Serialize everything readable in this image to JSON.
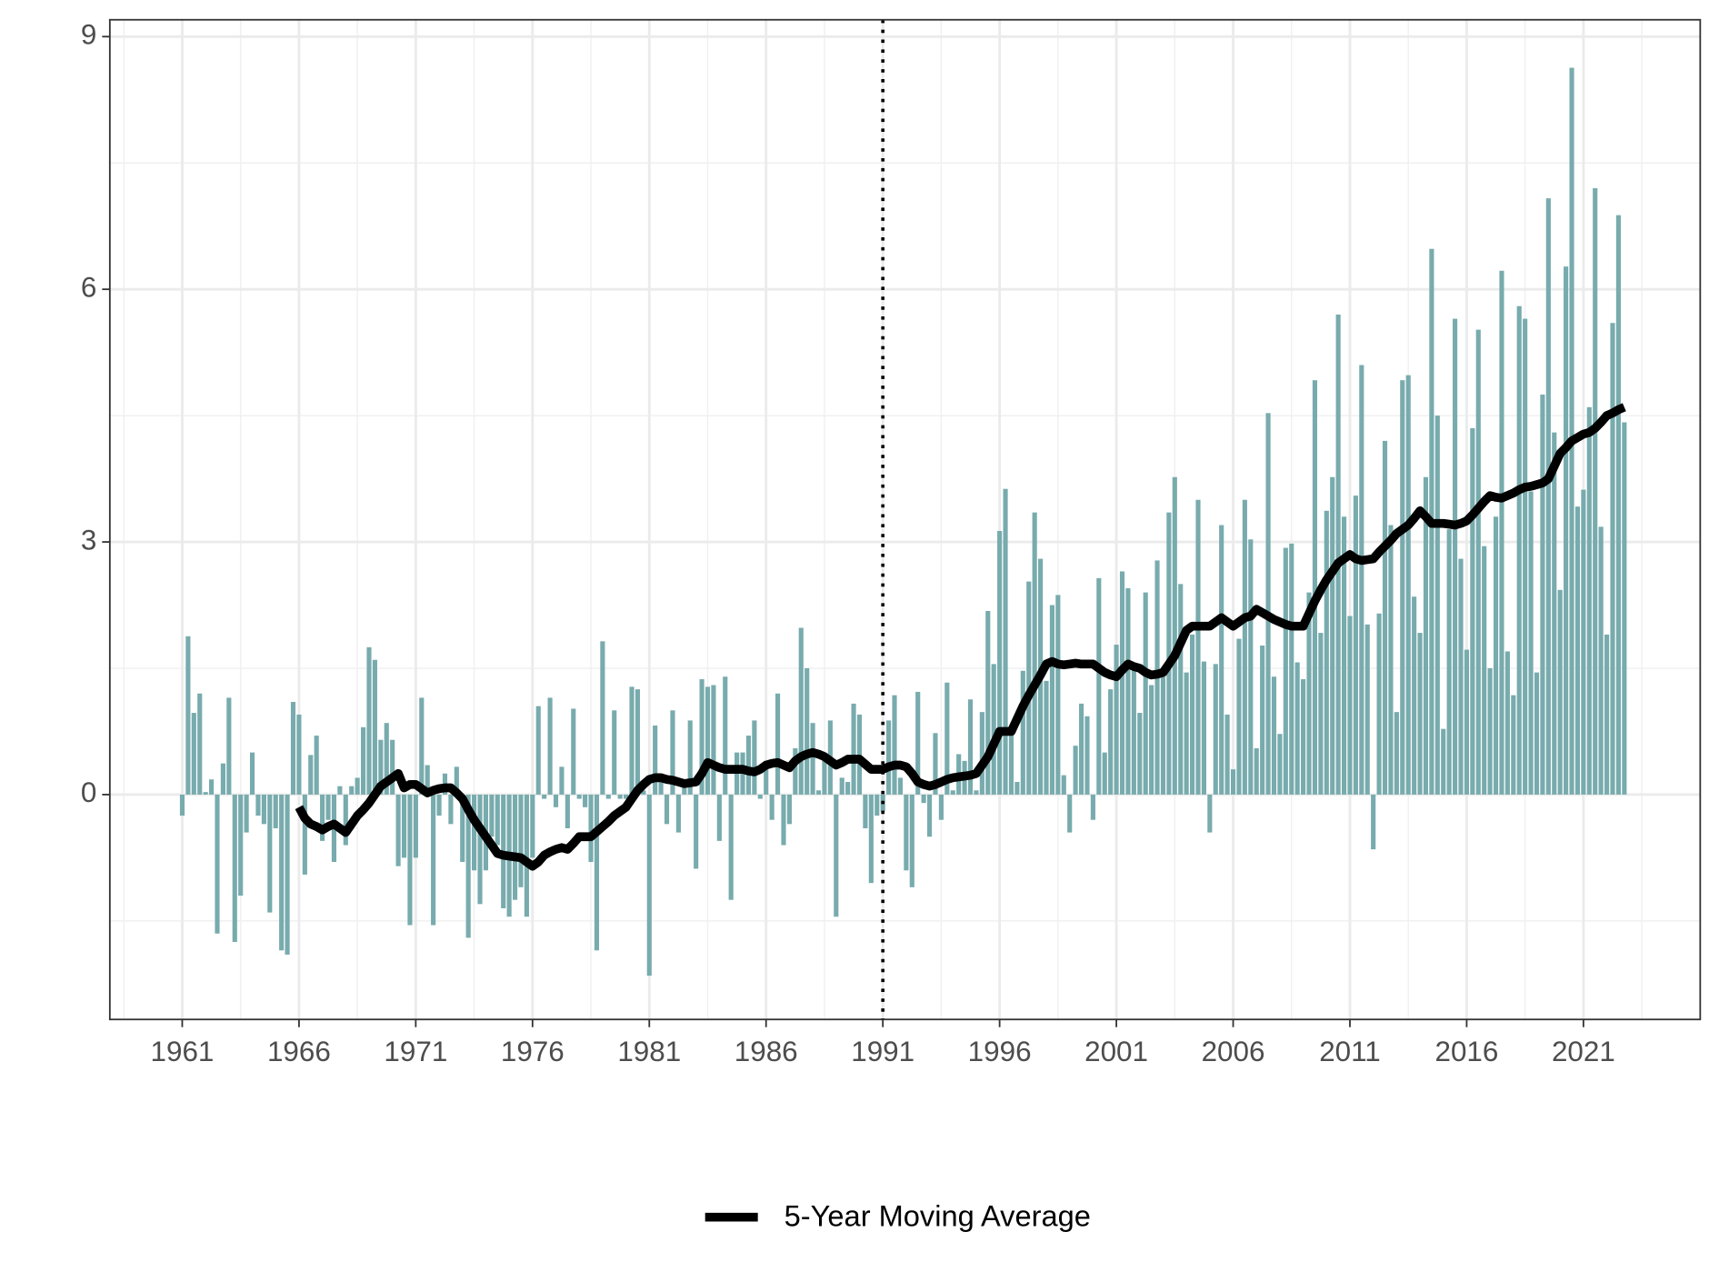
{
  "chart_data": {
    "type": "bar",
    "x": [
      1961,
      1961.25,
      1961.5,
      1961.75,
      1962,
      1962.25,
      1962.5,
      1962.75,
      1963,
      1963.25,
      1963.5,
      1963.75,
      1964,
      1964.25,
      1964.5,
      1964.75,
      1965,
      1965.25,
      1965.5,
      1965.75,
      1966,
      1966.25,
      1966.5,
      1966.75,
      1967,
      1967.25,
      1967.5,
      1967.75,
      1968,
      1968.25,
      1968.5,
      1968.75,
      1969,
      1969.25,
      1969.5,
      1969.75,
      1970,
      1970.25,
      1970.5,
      1970.75,
      1971,
      1971.25,
      1971.5,
      1971.75,
      1972,
      1972.25,
      1972.5,
      1972.75,
      1973,
      1973.25,
      1973.5,
      1973.75,
      1974,
      1974.25,
      1974.5,
      1974.75,
      1975,
      1975.25,
      1975.5,
      1975.75,
      1976,
      1976.25,
      1976.5,
      1976.75,
      1977,
      1977.25,
      1977.5,
      1977.75,
      1978,
      1978.25,
      1978.5,
      1978.75,
      1979,
      1979.25,
      1979.5,
      1979.75,
      1980,
      1980.25,
      1980.5,
      1980.75,
      1981,
      1981.25,
      1981.5,
      1981.75,
      1982,
      1982.25,
      1982.5,
      1982.75,
      1983,
      1983.25,
      1983.5,
      1983.75,
      1984,
      1984.25,
      1984.5,
      1984.75,
      1985,
      1985.25,
      1985.5,
      1985.75,
      1986,
      1986.25,
      1986.5,
      1986.75,
      1987,
      1987.25,
      1987.5,
      1987.75,
      1988,
      1988.25,
      1988.5,
      1988.75,
      1989,
      1989.25,
      1989.5,
      1989.75,
      1990,
      1990.25,
      1990.5,
      1990.75,
      1991,
      1991.25,
      1991.5,
      1991.75,
      1992,
      1992.25,
      1992.5,
      1992.75,
      1993,
      1993.25,
      1993.5,
      1993.75,
      1994,
      1994.25,
      1994.5,
      1994.75,
      1995,
      1995.25,
      1995.5,
      1995.75,
      1996,
      1996.25,
      1996.5,
      1996.75,
      1997,
      1997.25,
      1997.5,
      1997.75,
      1998,
      1998.25,
      1998.5,
      1998.75,
      1999,
      1999.25,
      1999.5,
      1999.75,
      2000,
      2000.25,
      2000.5,
      2000.75,
      2001,
      2001.25,
      2001.5,
      2001.75,
      2002,
      2002.25,
      2002.5,
      2002.75,
      2003,
      2003.25,
      2003.5,
      2003.75,
      2004,
      2004.25,
      2004.5,
      2004.75,
      2005,
      2005.25,
      2005.5,
      2005.75,
      2006,
      2006.25,
      2006.5,
      2006.75,
      2007,
      2007.25,
      2007.5,
      2007.75,
      2008,
      2008.25,
      2008.5,
      2008.75,
      2009,
      2009.25,
      2009.5,
      2009.75,
      2010,
      2010.25,
      2010.5,
      2010.75,
      2011,
      2011.25,
      2011.5,
      2011.75,
      2012,
      2012.25,
      2012.5,
      2012.75,
      2013,
      2013.25,
      2013.5,
      2013.75,
      2014,
      2014.25,
      2014.5,
      2014.75,
      2015,
      2015.25,
      2015.5,
      2015.75,
      2016,
      2016.25,
      2016.5,
      2016.75,
      2017,
      2017.25,
      2017.5,
      2017.75,
      2018,
      2018.25,
      2018.5,
      2018.75,
      2019,
      2019.25,
      2019.5,
      2019.75,
      2020,
      2020.25,
      2020.5,
      2020.75,
      2021,
      2021.25,
      2021.5,
      2021.75,
      2022,
      2022.25,
      2022.5,
      2022.75
    ],
    "series": [
      {
        "type": "bar",
        "color": "#78abad",
        "values": [
          -0.25,
          1.88,
          0.97,
          1.2,
          0.03,
          0.18,
          -1.65,
          0.37,
          1.15,
          -1.75,
          -1.2,
          -0.45,
          0.5,
          -0.25,
          -0.35,
          -1.4,
          -0.4,
          -1.85,
          -1.9,
          1.1,
          0.95,
          -0.95,
          0.47,
          0.7,
          -0.55,
          -0.3,
          -0.8,
          0.1,
          -0.6,
          0.1,
          0.2,
          0.8,
          1.75,
          1.6,
          0.65,
          0.85,
          0.65,
          -0.85,
          -0.75,
          -1.55,
          -0.75,
          1.15,
          0.35,
          -1.55,
          -0.25,
          0.25,
          -0.35,
          0.33,
          -0.8,
          -1.7,
          -0.9,
          -1.3,
          -0.9,
          -0.5,
          -0.6,
          -1.35,
          -1.45,
          -1.25,
          -1.1,
          -1.45,
          -0.75,
          1.05,
          -0.05,
          1.15,
          -0.15,
          0.33,
          -0.4,
          1.02,
          -0.05,
          -0.15,
          -0.8,
          -1.85,
          1.82,
          -0.05,
          1.0,
          -0.05,
          -0.05,
          1.28,
          1.25,
          0.05,
          -2.15,
          0.82,
          0.25,
          -0.35,
          1.0,
          -0.45,
          0.1,
          0.88,
          -0.88,
          1.37,
          1.28,
          1.3,
          -0.55,
          1.4,
          -1.25,
          0.5,
          0.5,
          0.7,
          0.88,
          -0.05,
          0.4,
          -0.3,
          1.2,
          -0.6,
          -0.35,
          0.55,
          1.98,
          1.5,
          0.85,
          0.05,
          0.45,
          0.88,
          -1.45,
          0.2,
          0.15,
          1.08,
          0.95,
          -0.4,
          -1.05,
          -0.25,
          -0.2,
          0.88,
          1.18,
          0.2,
          -0.9,
          -1.1,
          1.22,
          -0.1,
          -0.5,
          0.73,
          -0.3,
          1.33,
          0.05,
          0.48,
          0.4,
          1.13,
          0.05,
          0.98,
          2.18,
          1.55,
          3.13,
          3.63,
          0.78,
          0.15,
          1.47,
          2.53,
          3.35,
          2.8,
          1.35,
          2.25,
          2.37,
          0.23,
          -0.45,
          0.58,
          1.08,
          0.93,
          -0.3,
          2.57,
          0.5,
          1.25,
          1.78,
          2.65,
          2.45,
          1.5,
          0.97,
          2.4,
          1.3,
          2.78,
          1.4,
          3.35,
          3.77,
          2.5,
          1.45,
          1.9,
          3.5,
          1.58,
          -0.45,
          1.55,
          3.2,
          0.95,
          0.3,
          1.85,
          3.5,
          3.03,
          0.55,
          1.77,
          4.53,
          1.4,
          0.72,
          2.93,
          2.98,
          1.57,
          1.37,
          2.4,
          4.92,
          1.92,
          3.37,
          3.77,
          5.7,
          3.3,
          2.12,
          3.55,
          5.1,
          2.02,
          -0.65,
          2.15,
          4.2,
          3.2,
          0.98,
          4.92,
          4.98,
          2.35,
          1.92,
          3.77,
          6.48,
          4.5,
          0.78,
          3.15,
          5.65,
          2.8,
          1.72,
          4.35,
          5.52,
          2.95,
          1.5,
          3.3,
          6.22,
          1.7,
          1.18,
          5.8,
          5.65,
          3.6,
          1.45,
          4.75,
          7.08,
          4.3,
          2.43,
          6.27,
          8.63,
          3.42,
          3.62,
          4.6,
          7.2,
          3.18,
          1.9,
          5.6,
          6.88,
          4.42
        ]
      },
      {
        "type": "line",
        "name": "5-Year Moving Average",
        "color": "#000000",
        "values": [
          null,
          null,
          null,
          null,
          null,
          null,
          null,
          null,
          null,
          null,
          null,
          null,
          null,
          null,
          null,
          null,
          null,
          null,
          null,
          null,
          -0.15,
          -0.28,
          -0.35,
          -0.38,
          -0.42,
          -0.38,
          -0.35,
          -0.4,
          -0.45,
          -0.35,
          -0.25,
          -0.18,
          -0.1,
          0.0,
          0.1,
          0.15,
          0.2,
          0.25,
          0.08,
          0.12,
          0.12,
          0.07,
          0.02,
          0.05,
          0.07,
          0.08,
          0.08,
          0.02,
          -0.05,
          -0.18,
          -0.3,
          -0.4,
          -0.5,
          -0.6,
          -0.7,
          -0.72,
          -0.73,
          -0.74,
          -0.75,
          -0.8,
          -0.85,
          -0.8,
          -0.72,
          -0.68,
          -0.65,
          -0.63,
          -0.65,
          -0.58,
          -0.5,
          -0.5,
          -0.5,
          -0.44,
          -0.38,
          -0.32,
          -0.25,
          -0.2,
          -0.15,
          -0.05,
          0.05,
          0.12,
          0.18,
          0.2,
          0.2,
          0.18,
          0.17,
          0.15,
          0.13,
          0.14,
          0.15,
          0.25,
          0.38,
          0.35,
          0.32,
          0.3,
          0.3,
          0.3,
          0.3,
          0.28,
          0.27,
          0.3,
          0.35,
          0.37,
          0.38,
          0.35,
          0.32,
          0.4,
          0.45,
          0.48,
          0.5,
          0.48,
          0.45,
          0.4,
          0.35,
          0.38,
          0.42,
          0.42,
          0.42,
          0.36,
          0.3,
          0.3,
          0.3,
          0.33,
          0.35,
          0.35,
          0.33,
          0.25,
          0.15,
          0.12,
          0.1,
          0.12,
          0.15,
          0.18,
          0.2,
          0.21,
          0.22,
          0.23,
          0.25,
          0.35,
          0.45,
          0.6,
          0.75,
          0.75,
          0.75,
          0.9,
          1.05,
          1.18,
          1.3,
          1.42,
          1.55,
          1.58,
          1.55,
          1.54,
          1.55,
          1.56,
          1.55,
          1.55,
          1.55,
          1.5,
          1.45,
          1.42,
          1.4,
          1.48,
          1.55,
          1.52,
          1.5,
          1.45,
          1.42,
          1.43,
          1.45,
          1.55,
          1.65,
          1.8,
          1.95,
          2.0,
          2.0,
          2.0,
          2.0,
          2.05,
          2.1,
          2.05,
          2.0,
          2.05,
          2.1,
          2.12,
          2.2,
          2.16,
          2.12,
          2.08,
          2.05,
          2.02,
          2.0,
          2.0,
          2.0,
          2.15,
          2.3,
          2.43,
          2.55,
          2.65,
          2.75,
          2.8,
          2.85,
          2.8,
          2.78,
          2.79,
          2.8,
          2.88,
          2.95,
          3.02,
          3.1,
          3.15,
          3.2,
          3.28,
          3.37,
          3.3,
          3.22,
          3.22,
          3.22,
          3.21,
          3.2,
          3.22,
          3.25,
          3.32,
          3.4,
          3.48,
          3.55,
          3.53,
          3.52,
          3.55,
          3.58,
          3.62,
          3.65,
          3.66,
          3.68,
          3.7,
          3.75,
          3.9,
          4.05,
          4.12,
          4.2,
          4.24,
          4.28,
          4.3,
          4.35,
          4.42,
          4.5,
          4.53,
          4.57,
          4.6
        ]
      }
    ],
    "xlim": [
      1957.9,
      2026.0
    ],
    "ylim": [
      -2.67,
      9.2
    ],
    "xticks": [
      1961,
      1966,
      1971,
      1976,
      1981,
      1986,
      1991,
      1996,
      2001,
      2006,
      2011,
      2016,
      2021
    ],
    "yticks": [
      0,
      3,
      6,
      9
    ],
    "minor_xticks": [
      1958.5,
      1963.5,
      1968.5,
      1973.5,
      1978.5,
      1983.5,
      1988.5,
      1993.5,
      1998.5,
      2003.5,
      2008.5,
      2013.5,
      2018.5,
      2023.5
    ],
    "minor_yticks": [
      -1.5,
      1.5,
      4.5,
      7.5
    ],
    "vline": 1991,
    "grid": true,
    "legend": "bottom"
  }
}
